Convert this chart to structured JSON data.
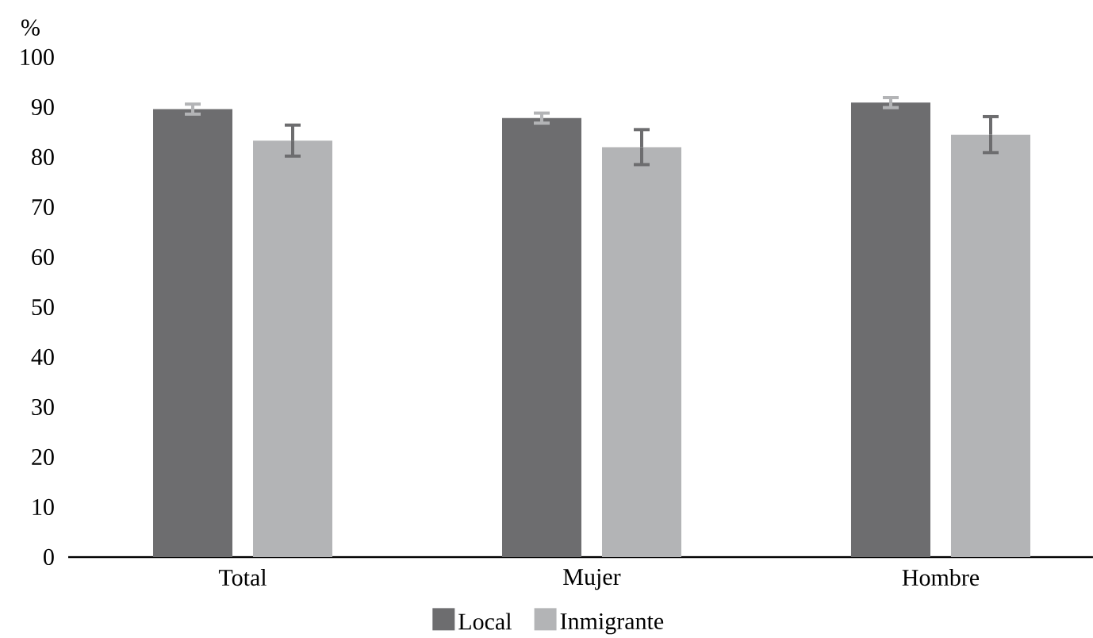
{
  "chart_data": {
    "type": "bar",
    "ylabel": "%",
    "categories": [
      "Total",
      "Mujer",
      "Hombre"
    ],
    "series": [
      {
        "name": "Local",
        "color": "#6d6d6f",
        "values": [
          89.6,
          87.8,
          90.9
        ],
        "errors": [
          1,
          1,
          1
        ]
      },
      {
        "name": "Inmigrante",
        "color": "#b3b4b6",
        "values": [
          83.3,
          82.0,
          84.5
        ],
        "errors": [
          3.1,
          3.5,
          3.6
        ]
      }
    ],
    "ylim": [
      0,
      100
    ],
    "yticks": [
      0,
      10,
      20,
      30,
      40,
      50,
      60,
      70,
      80,
      90,
      100
    ],
    "legend": "bottom"
  }
}
